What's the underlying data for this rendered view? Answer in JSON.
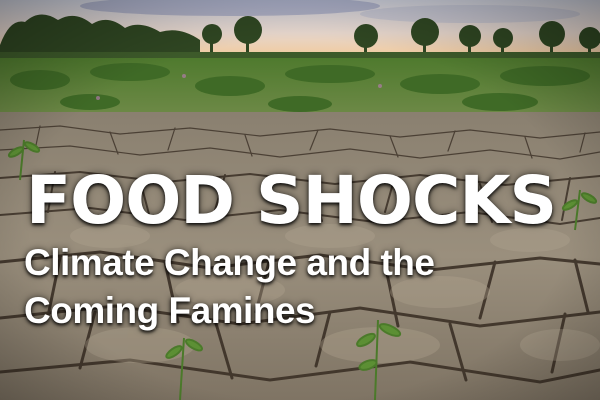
{
  "title": {
    "main": "FOOD SHOCKS",
    "line1": "Climate Change and the",
    "line2": "Coming Famines"
  },
  "colors": {
    "title_text": "#ffffff",
    "sky": "#d9dbe3",
    "sunset": "#f2c48b",
    "treeline": "#2f4a22",
    "vegetation": "#5f8a3a",
    "dry_soil": "#9a8d7a",
    "soil_crack": "#3b3026"
  }
}
